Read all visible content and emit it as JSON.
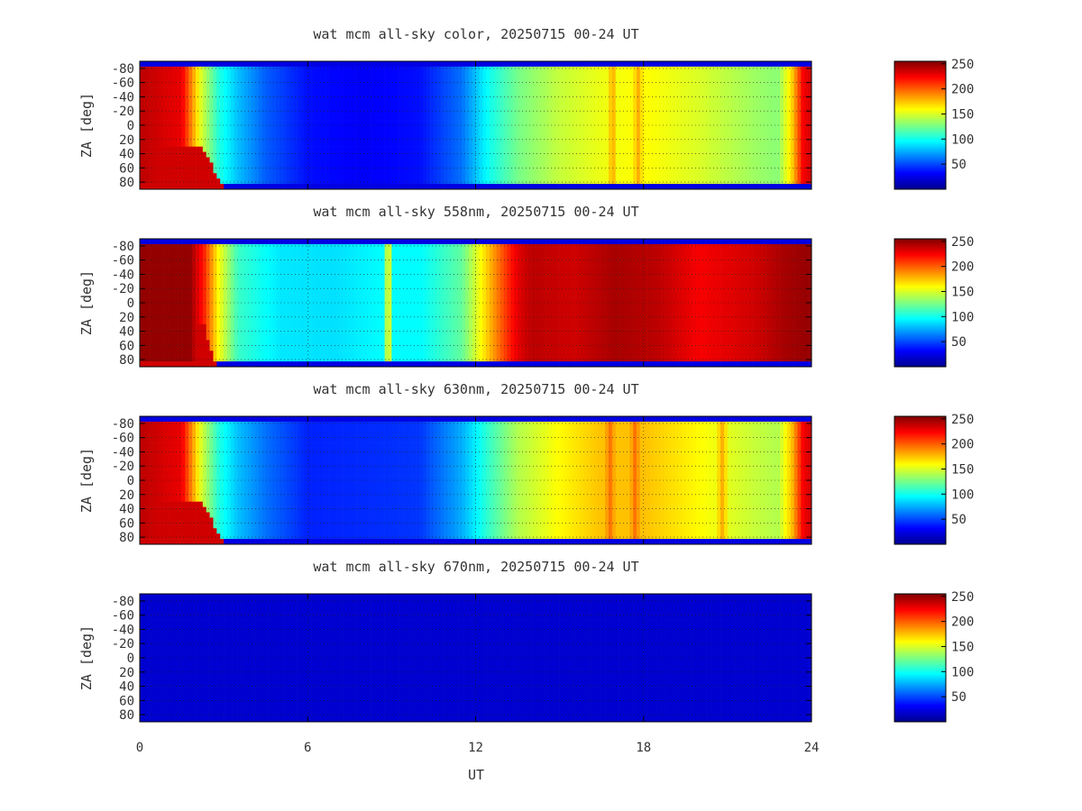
{
  "chart_data": {
    "type": "heatmap",
    "x_axis": {
      "label": "UT",
      "range": [
        0,
        24
      ],
      "ticks": [
        0,
        6,
        12,
        18,
        24
      ],
      "tick_labels": [
        "0",
        "6",
        "12",
        "18",
        "24"
      ]
    },
    "y_axis": {
      "label": "ZA [deg]",
      "range": [
        -90,
        90
      ],
      "ticks": [
        -80,
        -60,
        -40,
        -20,
        0,
        20,
        40,
        60,
        80
      ],
      "tick_labels": [
        "-80",
        "-60",
        "-40",
        "-20",
        "0",
        "20",
        "40",
        "60",
        "80"
      ],
      "grid": "dotted"
    },
    "colorbar": {
      "colormap": "jet",
      "range": [
        0,
        255
      ],
      "ticks": [
        50,
        100,
        150,
        200,
        250
      ],
      "tick_labels": [
        "50",
        "100",
        "150",
        "200",
        "250"
      ]
    },
    "panels": [
      {
        "id": "color",
        "title": "wat mcm all-sky color, 20250715 00-24 UT",
        "profile": {
          "ut": [
            0,
            1.5,
            2.2,
            2.8,
            3.5,
            4.5,
            6,
            8,
            10,
            11.5,
            12.5,
            13.5,
            15,
            16.5,
            18,
            20,
            22,
            22.8,
            23.3,
            23.7,
            24
          ],
          "value": [
            240,
            228,
            150,
            105,
            80,
            55,
            35,
            30,
            35,
            60,
            100,
            125,
            145,
            155,
            160,
            150,
            135,
            130,
            170,
            225,
            235
          ]
        },
        "streaks": [
          {
            "ut": 16.9,
            "value": 180
          },
          {
            "ut": 17.8,
            "value": 180
          }
        ],
        "low_za_warm_extent_ut": 1.2
      },
      {
        "id": "558nm",
        "title": "wat mcm all-sky 558nm, 20250715 00-24 UT",
        "profile": {
          "ut": [
            0,
            1.8,
            2.3,
            2.8,
            3.5,
            5,
            7,
            8.5,
            10,
            11.5,
            12.2,
            13,
            13.5,
            14,
            15.5,
            17,
            18.5,
            20,
            22,
            23,
            24
          ],
          "value": [
            250,
            250,
            215,
            160,
            110,
            90,
            88,
            95,
            95,
            120,
            160,
            205,
            230,
            240,
            235,
            245,
            240,
            225,
            235,
            245,
            250
          ]
        },
        "streaks": [
          {
            "ut": 8.9,
            "value": 150
          }
        ],
        "low_za_warm_extent_ut": 0.6
      },
      {
        "id": "630nm",
        "title": "wat mcm all-sky 630nm, 20250715 00-24 UT",
        "profile": {
          "ut": [
            0,
            1.5,
            2.2,
            2.8,
            3.5,
            4.5,
            6,
            8,
            10,
            11.5,
            12.5,
            13.5,
            15,
            16.5,
            18,
            20,
            22,
            22.8,
            23.3,
            23.7,
            24
          ],
          "value": [
            240,
            228,
            150,
            105,
            80,
            60,
            40,
            42,
            45,
            75,
            110,
            140,
            160,
            175,
            175,
            160,
            145,
            140,
            175,
            225,
            235
          ]
        },
        "streaks": [
          {
            "ut": 16.8,
            "value": 195
          },
          {
            "ut": 17.7,
            "value": 195
          },
          {
            "ut": 20.8,
            "value": 180
          }
        ],
        "low_za_warm_extent_ut": 1.2
      },
      {
        "id": "670nm",
        "title": "wat mcm all-sky 670nm, 20250715 00-24 UT",
        "profile": {
          "ut": [
            0,
            24
          ],
          "value": [
            20,
            20
          ]
        },
        "streaks": [],
        "low_za_warm_extent_ut": 0
      }
    ]
  }
}
